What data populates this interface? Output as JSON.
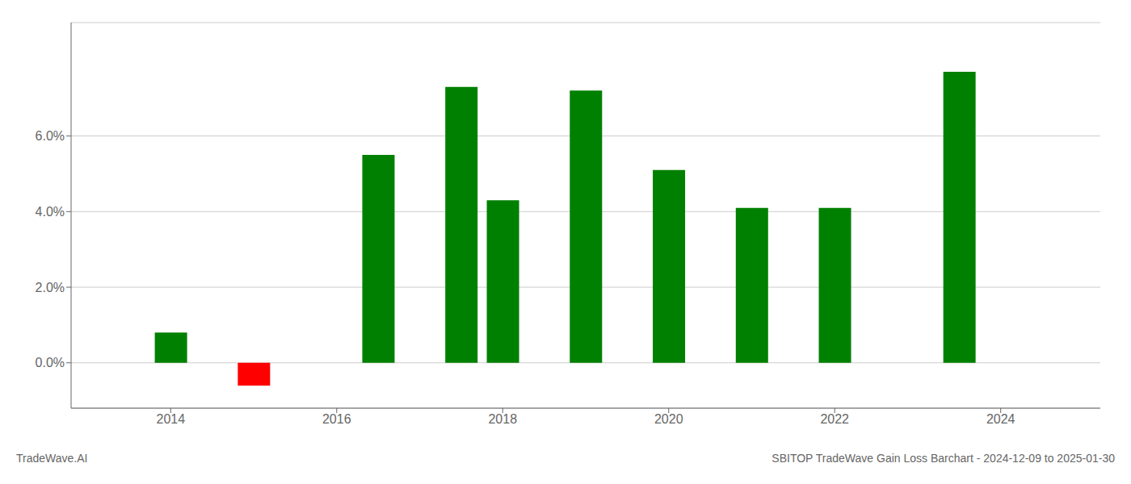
{
  "chart_data": {
    "type": "bar",
    "title": "SBITOP TradeWave Gain Loss Barchart - 2024-12-09 to 2025-01-30",
    "annotations": [
      "TradeWave.AI"
    ],
    "x": [
      2014.0,
      2015.0,
      2016.5,
      2017.5,
      2018.0,
      2019.0,
      2020.0,
      2021.0,
      2022.0,
      2023.5
    ],
    "values": [
      0.008,
      -0.006,
      0.055,
      0.073,
      0.043,
      0.072,
      0.051,
      0.041,
      0.041,
      0.077
    ],
    "colors": [
      "#008000",
      "#ff0000",
      "#008000",
      "#008000",
      "#008000",
      "#008000",
      "#008000",
      "#008000",
      "#008000",
      "#008000"
    ],
    "xlim": [
      2012.8,
      2025.2
    ],
    "xticks": [
      2014,
      2016,
      2018,
      2020,
      2022,
      2024
    ],
    "ylim": [
      -0.012,
      0.09
    ],
    "yticks": [
      {
        "value": 0,
        "label": "0.0%"
      },
      {
        "value": 0.02,
        "label": "2.0%"
      },
      {
        "value": 0.04,
        "label": "4.0%"
      },
      {
        "value": 0.06,
        "label": "6.0%"
      }
    ],
    "grid": true
  }
}
